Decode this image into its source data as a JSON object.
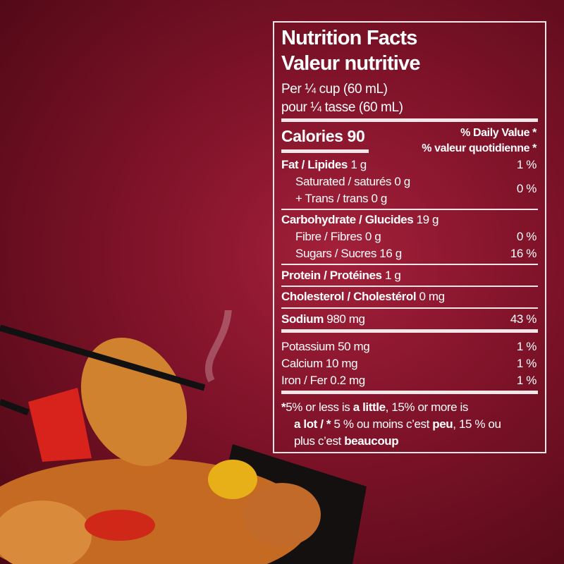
{
  "label": {
    "title_en": "Nutrition Facts",
    "title_fr": "Valeur nutritive",
    "serving_en": "Per ¼ cup (60 mL)",
    "serving_fr": "pour ¼ tasse (60 mL)",
    "calories": "Calories 90",
    "dv_en": "% Daily Value *",
    "dv_fr": "% valeur quotidienne *",
    "rows": [
      {
        "label": "Fat / Lipides",
        "amount": "1 g",
        "dv": "1 %"
      },
      {
        "label": "Saturated / saturés 0 g",
        "amount": "",
        "dv": "0 %"
      },
      {
        "label": "+ Trans / trans 0 g",
        "amount": "",
        "dv": ""
      },
      {
        "label": "Carbohydrate / Glucides",
        "amount": "19 g",
        "dv": ""
      },
      {
        "label": "Fibre / Fibres 0 g",
        "amount": "",
        "dv": "0 %"
      },
      {
        "label": "Sugars / Sucres 16 g",
        "amount": "",
        "dv": "16 %"
      },
      {
        "label": "Protein / Protéines",
        "amount": "1 g",
        "dv": ""
      },
      {
        "label": "Cholesterol / Cholestérol",
        "amount": "0 mg",
        "dv": ""
      },
      {
        "label": "Sodium",
        "amount": "980 mg",
        "dv": "43 %"
      },
      {
        "label": "Potassium 50 mg",
        "amount": "",
        "dv": "1 %"
      },
      {
        "label": "Calcium 10 mg",
        "amount": "",
        "dv": "1 %"
      },
      {
        "label": "Iron / Fer 0.2 mg",
        "amount": "",
        "dv": "1 %"
      }
    ],
    "footnote": {
      "star": "*",
      "p1": "5% or less is ",
      "b1": "a little",
      "p2": ", 15% or more is",
      "b2": "a lot / ",
      "star2": "*",
      "p3": " 5 % ou moins c’est ",
      "b3": "peu",
      "p4": ", 15 % ou",
      "p5": "plus c’est ",
      "b4": "beaucoup"
    }
  },
  "colors": {
    "background": "#7d1228",
    "label_text": "#ffffff"
  }
}
